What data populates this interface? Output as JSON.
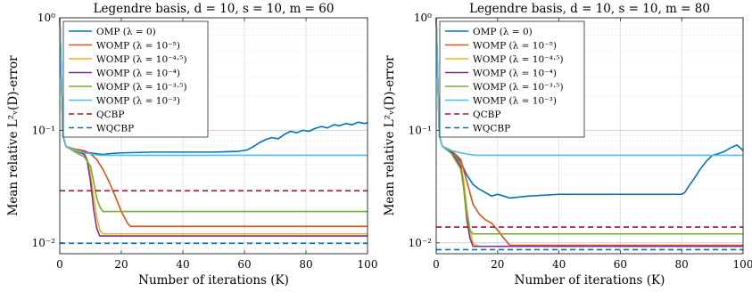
{
  "chart_data": [
    {
      "type": "line",
      "title": "Legendre basis, d = 10, s = 10, m = 60",
      "xlabel": "Number of iterations (K)",
      "ylabel": "Mean relative L²ᵥ(D)-error",
      "xlim": [
        0,
        100
      ],
      "ylim": [
        0.008,
        1
      ],
      "yscale": "log",
      "grid": true,
      "legend_position": "top-left",
      "xticks": [
        "0",
        "20",
        "40",
        "60",
        "80",
        "100"
      ],
      "yticks": [
        {
          "v": 1,
          "label": "10⁰"
        },
        {
          "v": 0.1,
          "label": "10⁻¹"
        },
        {
          "v": 0.01,
          "label": "10⁻²"
        }
      ],
      "series": [
        {
          "name": "OMP (λ = 0)",
          "color": "#0072BD",
          "dash": "solid",
          "points": [
            [
              0,
              1
            ],
            [
              1,
              0.09
            ],
            [
              2,
              0.072
            ],
            [
              4,
              0.068
            ],
            [
              6,
              0.065
            ],
            [
              8,
              0.064
            ],
            [
              10,
              0.063
            ],
            [
              12,
              0.062
            ],
            [
              14,
              0.061
            ],
            [
              16,
              0.062
            ],
            [
              20,
              0.063
            ],
            [
              30,
              0.064
            ],
            [
              40,
              0.064
            ],
            [
              50,
              0.064
            ],
            [
              58,
              0.065
            ],
            [
              61,
              0.067
            ],
            [
              63,
              0.072
            ],
            [
              65,
              0.078
            ],
            [
              67,
              0.083
            ],
            [
              69,
              0.086
            ],
            [
              71,
              0.084
            ],
            [
              73,
              0.092
            ],
            [
              75,
              0.098
            ],
            [
              77,
              0.095
            ],
            [
              79,
              0.1
            ],
            [
              81,
              0.098
            ],
            [
              83,
              0.104
            ],
            [
              85,
              0.108
            ],
            [
              87,
              0.105
            ],
            [
              89,
              0.112
            ],
            [
              91,
              0.11
            ],
            [
              93,
              0.115
            ],
            [
              95,
              0.112
            ],
            [
              97,
              0.118
            ],
            [
              99,
              0.115
            ],
            [
              100,
              0.117
            ]
          ]
        },
        {
          "name": "WOMP (λ = 10⁻⁵)",
          "color": "#D95319",
          "dash": "solid",
          "points": [
            [
              0,
              1
            ],
            [
              1,
              0.09
            ],
            [
              2,
              0.072
            ],
            [
              5,
              0.068
            ],
            [
              8,
              0.066
            ],
            [
              10,
              0.062
            ],
            [
              12,
              0.055
            ],
            [
              14,
              0.045
            ],
            [
              16,
              0.035
            ],
            [
              18,
              0.026
            ],
            [
              20,
              0.019
            ],
            [
              22,
              0.015
            ],
            [
              23,
              0.014
            ],
            [
              100,
              0.014
            ]
          ]
        },
        {
          "name": "WOMP (λ = 10⁻⁴·⁵)",
          "color": "#EDB120",
          "dash": "solid",
          "points": [
            [
              0,
              1
            ],
            [
              1,
              0.09
            ],
            [
              2,
              0.072
            ],
            [
              5,
              0.067
            ],
            [
              8,
              0.062
            ],
            [
              9,
              0.055
            ],
            [
              10,
              0.04
            ],
            [
              11,
              0.026
            ],
            [
              12,
              0.017
            ],
            [
              13,
              0.013
            ],
            [
              14,
              0.012
            ],
            [
              100,
              0.012
            ]
          ]
        },
        {
          "name": "WOMP (λ = 10⁻⁴)",
          "color": "#7E2F8E",
          "dash": "solid",
          "points": [
            [
              0,
              1
            ],
            [
              1,
              0.09
            ],
            [
              2,
              0.072
            ],
            [
              5,
              0.066
            ],
            [
              8,
              0.061
            ],
            [
              9,
              0.052
            ],
            [
              10,
              0.035
            ],
            [
              11,
              0.02
            ],
            [
              12,
              0.0135
            ],
            [
              13,
              0.0115
            ],
            [
              100,
              0.0115
            ]
          ]
        },
        {
          "name": "WOMP (λ = 10⁻³·⁵)",
          "color": "#77AC30",
          "dash": "solid",
          "points": [
            [
              0,
              1
            ],
            [
              1,
              0.09
            ],
            [
              2,
              0.072
            ],
            [
              5,
              0.064
            ],
            [
              8,
              0.058
            ],
            [
              10,
              0.048
            ],
            [
              11,
              0.035
            ],
            [
              12,
              0.025
            ],
            [
              13,
              0.021
            ],
            [
              14,
              0.019
            ],
            [
              100,
              0.019
            ]
          ]
        },
        {
          "name": "WOMP (λ = 10⁻³)",
          "color": "#4DBEEE",
          "dash": "solid",
          "points": [
            [
              0,
              1
            ],
            [
              1,
              0.09
            ],
            [
              2,
              0.072
            ],
            [
              5,
              0.066
            ],
            [
              8,
              0.063
            ],
            [
              11,
              0.061
            ],
            [
              13,
              0.06
            ],
            [
              100,
              0.06
            ]
          ]
        },
        {
          "name": "QCBP",
          "color": "#A2142F",
          "dash": "dashed",
          "points": [
            [
              0,
              0.029
            ],
            [
              100,
              0.029
            ]
          ]
        },
        {
          "name": "WQCBP",
          "color": "#0072BD",
          "dash": "dashed",
          "points": [
            [
              0,
              0.0099
            ],
            [
              100,
              0.0099
            ]
          ]
        }
      ]
    },
    {
      "type": "line",
      "title": "Legendre basis, d = 10, s = 10, m = 80",
      "xlabel": "Number of iterations (K)",
      "ylabel": "Mean relative L²ᵥ(D)-error",
      "xlim": [
        0,
        100
      ],
      "ylim": [
        0.008,
        1
      ],
      "yscale": "log",
      "grid": true,
      "legend_position": "top-left",
      "xticks": [
        "0",
        "20",
        "40",
        "60",
        "80",
        "100"
      ],
      "yticks": [
        {
          "v": 1,
          "label": "10⁰"
        },
        {
          "v": 0.1,
          "label": "10⁻¹"
        },
        {
          "v": 0.01,
          "label": "10⁻²"
        }
      ],
      "series": [
        {
          "name": "OMP (λ = 0)",
          "color": "#0072BD",
          "dash": "solid",
          "points": [
            [
              0,
              1
            ],
            [
              1,
              0.09
            ],
            [
              2,
              0.072
            ],
            [
              4,
              0.068
            ],
            [
              6,
              0.062
            ],
            [
              8,
              0.052
            ],
            [
              10,
              0.04
            ],
            [
              12,
              0.033
            ],
            [
              14,
              0.03
            ],
            [
              16,
              0.028
            ],
            [
              18,
              0.026
            ],
            [
              20,
              0.027
            ],
            [
              22,
              0.026
            ],
            [
              24,
              0.025
            ],
            [
              30,
              0.026
            ],
            [
              40,
              0.027
            ],
            [
              50,
              0.027
            ],
            [
              60,
              0.027
            ],
            [
              70,
              0.027
            ],
            [
              80,
              0.027
            ],
            [
              81,
              0.028
            ],
            [
              82,
              0.031
            ],
            [
              84,
              0.037
            ],
            [
              86,
              0.045
            ],
            [
              88,
              0.053
            ],
            [
              90,
              0.06
            ],
            [
              92,
              0.062
            ],
            [
              94,
              0.065
            ],
            [
              96,
              0.07
            ],
            [
              98,
              0.074
            ],
            [
              99,
              0.07
            ],
            [
              100,
              0.066
            ]
          ]
        },
        {
          "name": "WOMP (λ = 10⁻⁵)",
          "color": "#D95319",
          "dash": "solid",
          "points": [
            [
              0,
              1
            ],
            [
              1,
              0.09
            ],
            [
              2,
              0.072
            ],
            [
              5,
              0.066
            ],
            [
              8,
              0.055
            ],
            [
              10,
              0.035
            ],
            [
              12,
              0.022
            ],
            [
              14,
              0.018
            ],
            [
              16,
              0.016
            ],
            [
              18,
              0.015
            ],
            [
              20,
              0.013
            ],
            [
              22,
              0.011
            ],
            [
              24,
              0.0095
            ],
            [
              100,
              0.0095
            ]
          ]
        },
        {
          "name": "WOMP (λ = 10⁻⁴·⁵)",
          "color": "#EDB120",
          "dash": "solid",
          "points": [
            [
              0,
              1
            ],
            [
              1,
              0.09
            ],
            [
              2,
              0.072
            ],
            [
              5,
              0.064
            ],
            [
              8,
              0.05
            ],
            [
              9,
              0.035
            ],
            [
              10,
              0.02
            ],
            [
              11,
              0.013
            ],
            [
              12,
              0.0098
            ],
            [
              14,
              0.0093
            ],
            [
              100,
              0.0093
            ]
          ]
        },
        {
          "name": "WOMP (λ = 10⁻⁴)",
          "color": "#7E2F8E",
          "dash": "solid",
          "points": [
            [
              0,
              1
            ],
            [
              1,
              0.09
            ],
            [
              2,
              0.072
            ],
            [
              5,
              0.064
            ],
            [
              8,
              0.048
            ],
            [
              9,
              0.03
            ],
            [
              10,
              0.016
            ],
            [
              11,
              0.011
            ],
            [
              12,
              0.0093
            ],
            [
              100,
              0.0093
            ]
          ]
        },
        {
          "name": "WOMP (λ = 10⁻³·⁵)",
          "color": "#77AC30",
          "dash": "solid",
          "points": [
            [
              0,
              1
            ],
            [
              1,
              0.09
            ],
            [
              2,
              0.072
            ],
            [
              5,
              0.062
            ],
            [
              8,
              0.045
            ],
            [
              9,
              0.03
            ],
            [
              10,
              0.018
            ],
            [
              11,
              0.013
            ],
            [
              12,
              0.012
            ],
            [
              100,
              0.012
            ]
          ]
        },
        {
          "name": "WOMP (λ = 10⁻³)",
          "color": "#4DBEEE",
          "dash": "solid",
          "points": [
            [
              0,
              1
            ],
            [
              1,
              0.09
            ],
            [
              2,
              0.072
            ],
            [
              5,
              0.066
            ],
            [
              8,
              0.063
            ],
            [
              11,
              0.061
            ],
            [
              13,
              0.06
            ],
            [
              100,
              0.06
            ]
          ]
        },
        {
          "name": "QCBP",
          "color": "#A2142F",
          "dash": "dashed",
          "points": [
            [
              0,
              0.0138
            ],
            [
              100,
              0.0138
            ]
          ]
        },
        {
          "name": "WQCBP",
          "color": "#0072BD",
          "dash": "dashed",
          "points": [
            [
              0,
              0.0087
            ],
            [
              100,
              0.0087
            ]
          ]
        }
      ]
    }
  ]
}
